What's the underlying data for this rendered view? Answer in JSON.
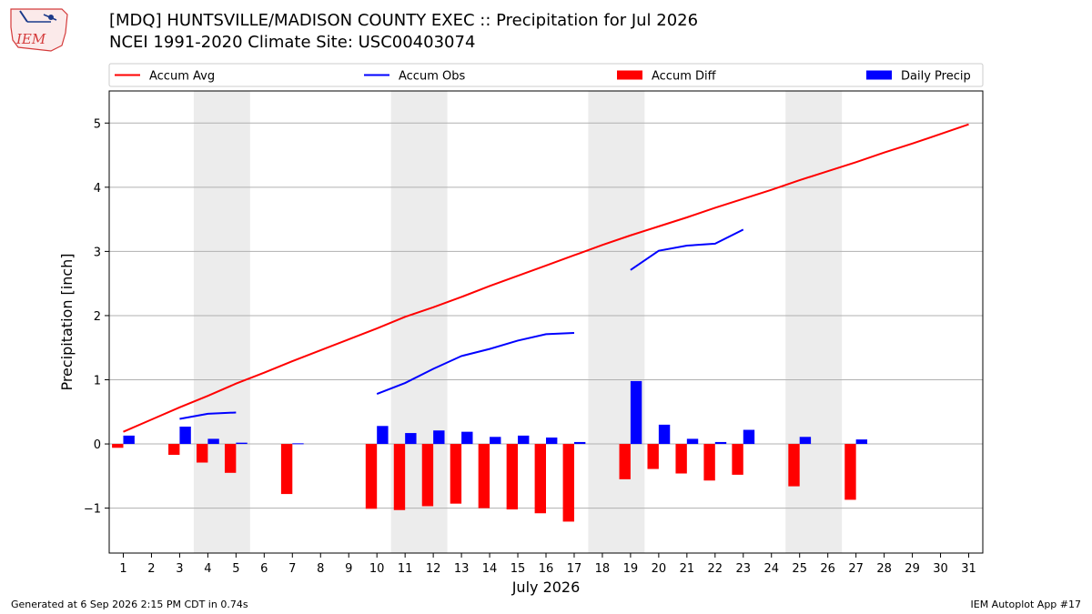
{
  "header": {
    "title": "[MDQ] HUNTSVILLE/MADISON COUNTY EXEC :: Precipitation for Jul 2026",
    "subtitle": "NCEI 1991-2020 Climate Site: USC00403074",
    "logo_text": "IEM"
  },
  "footer": {
    "left": "Generated at 6 Sep 2026 2:15 PM CDT in 0.74s",
    "right": "IEM Autoplot App #17"
  },
  "colors": {
    "avg": "#ff0000",
    "obs": "#0000ff",
    "diff": "#ff0000",
    "daily": "#0000ff",
    "weekend": "#ececec",
    "grid": "#b0b0b0"
  },
  "chart_data": {
    "type": "bar",
    "xlabel": "July 2026",
    "ylabel": "Precipitation [inch]",
    "xlim": [
      0.5,
      31.5
    ],
    "ylim": [
      -1.7,
      5.5
    ],
    "yticks": [
      -1,
      0,
      1,
      2,
      3,
      4,
      5
    ],
    "ytick_labels": [
      "−1",
      "0",
      "1",
      "2",
      "3",
      "4",
      "5"
    ],
    "x": [
      1,
      2,
      3,
      4,
      5,
      6,
      7,
      8,
      9,
      10,
      11,
      12,
      13,
      14,
      15,
      16,
      17,
      18,
      19,
      20,
      21,
      22,
      23,
      24,
      25,
      26,
      27,
      28,
      29,
      30,
      31
    ],
    "weekend_shading": [
      [
        3.5,
        5.5
      ],
      [
        10.5,
        12.5
      ],
      [
        17.5,
        19.5
      ],
      [
        24.5,
        26.5
      ]
    ],
    "legend": {
      "placement": "top",
      "entries": [
        {
          "key": "avg",
          "label": "Accum Avg",
          "kind": "line"
        },
        {
          "key": "obs",
          "label": "Accum Obs",
          "kind": "line"
        },
        {
          "key": "diff",
          "label": "Accum Diff",
          "kind": "bar"
        },
        {
          "key": "daily",
          "label": "Daily Precip",
          "kind": "bar"
        }
      ]
    },
    "series": [
      {
        "name": "Accum Avg",
        "key": "avg",
        "type": "line",
        "x": [
          1,
          2,
          3,
          4,
          5,
          6,
          7,
          8,
          9,
          10,
          11,
          12,
          13,
          14,
          15,
          16,
          17,
          18,
          19,
          20,
          21,
          22,
          23,
          24,
          25,
          26,
          27,
          28,
          29,
          30,
          31
        ],
        "values": [
          0.19,
          0.38,
          0.57,
          0.75,
          0.94,
          1.11,
          1.29,
          1.46,
          1.63,
          1.8,
          1.98,
          2.13,
          2.29,
          2.46,
          2.62,
          2.78,
          2.94,
          3.1,
          3.25,
          3.39,
          3.53,
          3.68,
          3.82,
          3.96,
          4.11,
          4.25,
          4.39,
          4.54,
          4.68,
          4.83,
          4.98
        ]
      },
      {
        "name": "Accum Obs",
        "key": "obs",
        "type": "line",
        "segments": [
          {
            "x": [
              3,
              4,
              5
            ],
            "values": [
              0.39,
              0.47,
              0.49
            ]
          },
          {
            "x": [
              10,
              11,
              12,
              13,
              14,
              15,
              16,
              17
            ],
            "values": [
              0.78,
              0.95,
              1.17,
              1.37,
              1.48,
              1.61,
              1.71,
              1.73
            ]
          },
          {
            "x": [
              19,
              20,
              21,
              22,
              23
            ],
            "values": [
              2.71,
              3.01,
              3.09,
              3.12,
              3.34
            ]
          }
        ]
      },
      {
        "name": "Accum Diff",
        "key": "diff",
        "type": "bar",
        "x": [
          1,
          3,
          4,
          5,
          7,
          10,
          11,
          12,
          13,
          14,
          15,
          16,
          17,
          19,
          20,
          21,
          22,
          23,
          25,
          27
        ],
        "values": [
          -0.06,
          -0.17,
          -0.29,
          -0.45,
          -0.78,
          -1.01,
          -1.03,
          -0.97,
          -0.93,
          -1.0,
          -1.02,
          -1.08,
          -1.21,
          -0.55,
          -0.39,
          -0.46,
          -0.57,
          -0.48,
          -0.66,
          -0.87
        ]
      },
      {
        "name": "Daily Precip",
        "key": "daily",
        "type": "bar",
        "x": [
          1,
          3,
          4,
          5,
          7,
          10,
          11,
          12,
          13,
          14,
          15,
          16,
          17,
          19,
          20,
          21,
          22,
          23,
          25,
          27
        ],
        "values": [
          0.13,
          0.27,
          0.08,
          0.02,
          0.01,
          0.28,
          0.17,
          0.21,
          0.19,
          0.11,
          0.13,
          0.1,
          0.03,
          0.98,
          0.3,
          0.08,
          0.03,
          0.22,
          0.11,
          0.07
        ]
      }
    ]
  }
}
